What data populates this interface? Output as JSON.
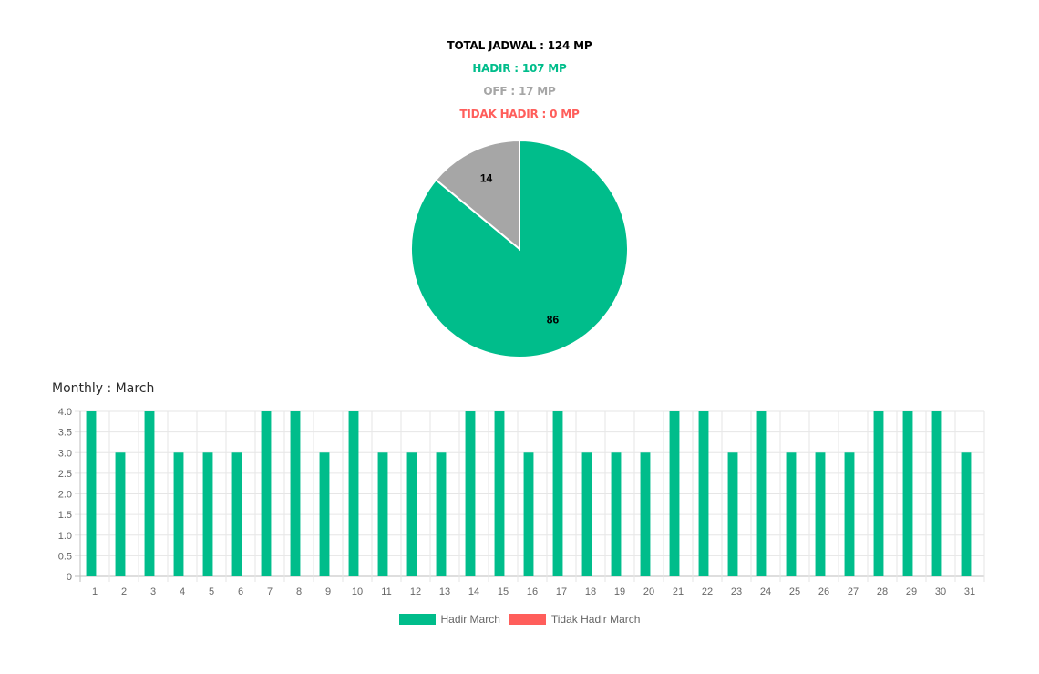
{
  "summary": {
    "total": "TOTAL JADWAL : 124 MP",
    "hadir": "HADIR : 107 MP",
    "off": "OFF : 17 MP",
    "tidak_hadir": "TIDAK HADIR : 0 MP"
  },
  "colors": {
    "hadir": "#00bd8b",
    "off": "#a6a6a6",
    "tidak_hadir": "#ff5e5b",
    "total": "#000000",
    "grid": "#e6e6e6",
    "tick": "#666666"
  },
  "monthly": {
    "title": "Monthly : March"
  },
  "chart_data": [
    {
      "type": "pie",
      "labels": [
        "Hadir",
        "Off"
      ],
      "values": [
        86,
        14
      ],
      "colors": [
        "#00bd8b",
        "#a6a6a6"
      ],
      "data_labels": [
        "86",
        "14"
      ]
    },
    {
      "type": "bar",
      "title": "Monthly : March",
      "categories": [
        "1",
        "2",
        "3",
        "4",
        "5",
        "6",
        "7",
        "8",
        "9",
        "10",
        "11",
        "12",
        "13",
        "14",
        "15",
        "16",
        "17",
        "18",
        "19",
        "20",
        "21",
        "22",
        "23",
        "24",
        "25",
        "26",
        "27",
        "28",
        "29",
        "30",
        "31"
      ],
      "series": [
        {
          "name": "Hadir March",
          "color": "#00bd8b",
          "values": [
            4,
            3,
            4,
            3,
            3,
            3,
            4,
            4,
            3,
            4,
            3,
            3,
            3,
            4,
            4,
            3,
            4,
            3,
            3,
            3,
            4,
            4,
            3,
            4,
            3,
            3,
            3,
            4,
            4,
            4,
            3
          ]
        },
        {
          "name": "Tidak Hadir March",
          "color": "#ff5e5b",
          "values": [
            0,
            0,
            0,
            0,
            0,
            0,
            0,
            0,
            0,
            0,
            0,
            0,
            0,
            0,
            0,
            0,
            0,
            0,
            0,
            0,
            0,
            0,
            0,
            0,
            0,
            0,
            0,
            0,
            0,
            0,
            0
          ]
        }
      ],
      "ylim": [
        0,
        4
      ],
      "yticks": [
        "0",
        "0.5",
        "1.0",
        "1.5",
        "2.0",
        "2.5",
        "3.0",
        "3.5",
        "4.0"
      ],
      "grid": true,
      "legend": "bottom"
    }
  ]
}
